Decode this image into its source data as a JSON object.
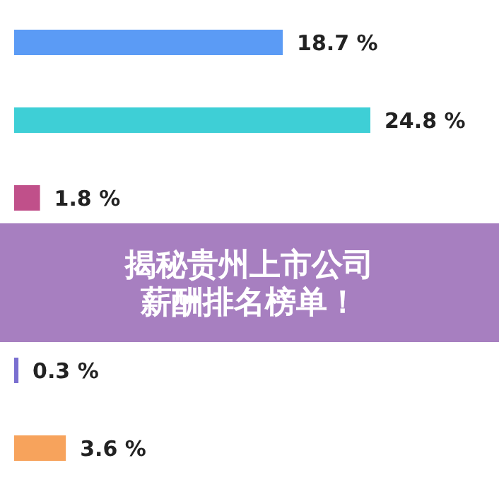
{
  "chart_data": {
    "type": "bar",
    "orientation": "horizontal",
    "title": "揭秘贵州上市公司薪酬排名榜单！",
    "categories": [
      null,
      null,
      null,
      null,
      null
    ],
    "values": [
      18.7,
      24.8,
      1.8,
      0.3,
      3.6
    ],
    "colors": [
      "#5b9bf5",
      "#3ecfd6",
      "#c0508a",
      "#7a6fd0",
      "#f7a35c"
    ],
    "value_labels": [
      "18.7 %",
      "24.8 %",
      "1.8 %",
      "0.3 %",
      "3.6 %"
    ]
  }
}
